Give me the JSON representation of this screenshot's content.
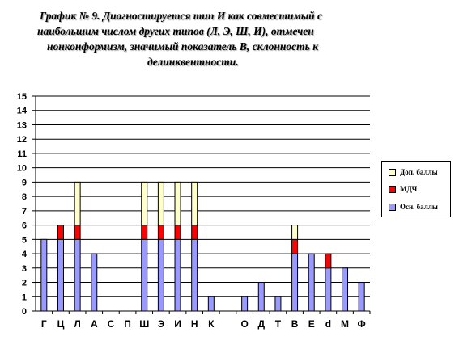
{
  "title_lines": [
    "График № 9. Диагностируется тип  И  как  совместимый с",
    "наибольшим числом других типов (Л, Э, Ш, И), отмечен",
    "нонконформизм, значимый показатель В, склонность к",
    "делинквентности."
  ],
  "colors": {
    "base": "#9999ff",
    "mdch": "#ff0000",
    "extra": "#ffffcc",
    "grid": "#000000",
    "axis": "#000000"
  },
  "chart_data": {
    "type": "bar",
    "stacked": true,
    "categories": [
      "Г",
      "Ц",
      "Л",
      "А",
      "С",
      "П",
      "Ш",
      "Э",
      "И",
      "Н",
      "К",
      "",
      "О",
      "Д",
      "Т",
      "В",
      "Е",
      "d",
      "M",
      "Ф"
    ],
    "series": [
      {
        "name": "Осн. баллы",
        "values": [
          5,
          5,
          5,
          4,
          0,
          0,
          5,
          5,
          5,
          5,
          1,
          0,
          1,
          2,
          1,
          4,
          4,
          3,
          3,
          2
        ]
      },
      {
        "name": "МДЧ",
        "values": [
          0,
          1,
          1,
          0,
          0,
          0,
          1,
          1,
          1,
          1,
          0,
          0,
          0,
          0,
          0,
          1,
          0,
          1,
          0,
          0
        ]
      },
      {
        "name": "Доп. баллы",
        "values": [
          0,
          0,
          3,
          0,
          0,
          0,
          3,
          3,
          3,
          3,
          0,
          0,
          0,
          0,
          0,
          1,
          0,
          0,
          0,
          0
        ]
      }
    ],
    "y_ticks": [
      0,
      1,
      2,
      3,
      4,
      5,
      6,
      7,
      8,
      9,
      10,
      11,
      12,
      13,
      14,
      15
    ],
    "ylim": [
      0,
      15
    ],
    "grid": true,
    "legend_position": "right"
  }
}
